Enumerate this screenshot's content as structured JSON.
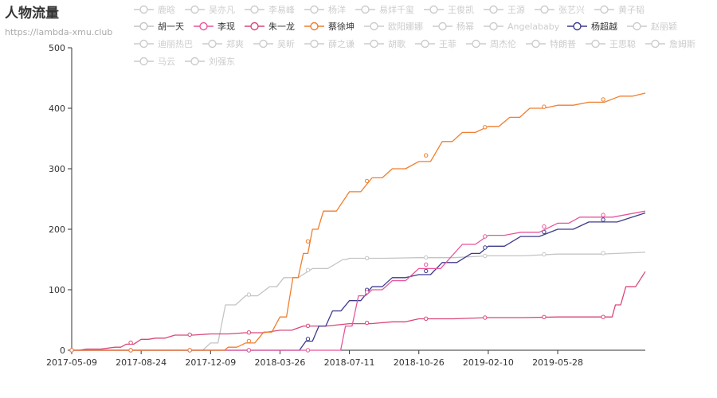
{
  "chart_data": {
    "type": "line",
    "title": "人物流量",
    "subtitle": "https://lambda-xmu.club",
    "y_ticks": [
      0,
      100,
      200,
      300,
      400,
      500
    ],
    "ylim": [
      0,
      500
    ],
    "x_ticks": [
      "2017-05-09",
      "2017-08-24",
      "2017-12-09",
      "2018-03-26",
      "2018-07-11",
      "2018-10-26",
      "2019-02-10",
      "2019-05-28"
    ],
    "xlim": [
      "2017-05-09",
      "2019-10-10"
    ],
    "legend_rows": [
      [
        "鹿晗",
        "吴亦凡",
        "李易峰",
        "杨洋",
        "易烊千玺",
        "王俊凯",
        "王源",
        "张艺兴",
        "黄子韬"
      ],
      [
        "胡一天",
        "李现",
        "朱一龙",
        "蔡徐坤",
        "欧阳娜娜",
        "杨幂",
        "Angelababy",
        "杨超越",
        "赵丽颖"
      ],
      [
        "迪丽热巴",
        "郑爽",
        "吴昕",
        "薛之谦",
        "胡歌",
        "王菲",
        "周杰伦",
        "特朗普",
        "王思聪",
        "詹姆斯"
      ],
      [
        "马云",
        "刘强东"
      ]
    ],
    "series": [
      {
        "name": "胡一天",
        "color": "#c4c4c4",
        "active": true,
        "points": [
          [
            "2017-05-09",
            0
          ],
          [
            "2017-11-15",
            0
          ],
          [
            "2017-12-09",
            12
          ],
          [
            "2018-01-01",
            75
          ],
          [
            "2018-02-01",
            90
          ],
          [
            "2018-03-10",
            105
          ],
          [
            "2018-04-01",
            120
          ],
          [
            "2018-05-15",
            135
          ],
          [
            "2018-07-01",
            150
          ],
          [
            "2018-07-11",
            152
          ],
          [
            "2018-10-26",
            153
          ],
          [
            "2019-02-10",
            156
          ],
          [
            "2019-05-28",
            159
          ],
          [
            "2019-10-10",
            162
          ]
        ]
      },
      {
        "name": "李现",
        "color": "#e8559b",
        "active": true,
        "points": [
          [
            "2017-05-09",
            0
          ],
          [
            "2018-06-20",
            0
          ],
          [
            "2018-07-05",
            40
          ],
          [
            "2018-07-25",
            90
          ],
          [
            "2018-08-15",
            100
          ],
          [
            "2018-09-15",
            115
          ],
          [
            "2018-10-26",
            135
          ],
          [
            "2019-01-01",
            175
          ],
          [
            "2019-02-10",
            190
          ],
          [
            "2019-04-01",
            195
          ],
          [
            "2019-05-28",
            210
          ],
          [
            "2019-07-01",
            220
          ],
          [
            "2019-10-10",
            230
          ]
        ]
      },
      {
        "name": "朱一龙",
        "color": "#d9477a",
        "active": true,
        "points": [
          [
            "2017-05-09",
            0
          ],
          [
            "2017-06-01",
            2
          ],
          [
            "2017-07-15",
            5
          ],
          [
            "2017-08-01",
            10
          ],
          [
            "2017-08-24",
            18
          ],
          [
            "2017-09-15",
            20
          ],
          [
            "2017-10-15",
            25
          ],
          [
            "2017-12-09",
            27
          ],
          [
            "2018-02-01",
            29
          ],
          [
            "2018-03-26",
            33
          ],
          [
            "2018-05-01",
            40
          ],
          [
            "2018-07-11",
            44
          ],
          [
            "2018-09-15",
            47
          ],
          [
            "2018-10-26",
            52
          ],
          [
            "2019-02-10",
            54
          ],
          [
            "2019-05-28",
            55
          ],
          [
            "2019-08-15",
            55
          ],
          [
            "2019-08-25",
            75
          ],
          [
            "2019-09-10",
            105
          ],
          [
            "2019-10-10",
            130
          ]
        ]
      },
      {
        "name": "蔡徐坤",
        "color": "#f07e2e",
        "active": true,
        "points": [
          [
            "2017-05-09",
            0
          ],
          [
            "2017-12-25",
            0
          ],
          [
            "2018-01-05",
            5
          ],
          [
            "2018-02-01",
            12
          ],
          [
            "2018-03-01",
            30
          ],
          [
            "2018-03-26",
            55
          ],
          [
            "2018-04-15",
            120
          ],
          [
            "2018-05-01",
            160
          ],
          [
            "2018-05-15",
            200
          ],
          [
            "2018-06-01",
            230
          ],
          [
            "2018-07-11",
            262
          ],
          [
            "2018-08-15",
            285
          ],
          [
            "2018-09-15",
            300
          ],
          [
            "2018-10-26",
            312
          ],
          [
            "2018-12-01",
            345
          ],
          [
            "2019-01-01",
            360
          ],
          [
            "2019-02-10",
            370
          ],
          [
            "2019-03-15",
            385
          ],
          [
            "2019-04-15",
            400
          ],
          [
            "2019-05-28",
            405
          ],
          [
            "2019-07-15",
            410
          ],
          [
            "2019-09-01",
            420
          ],
          [
            "2019-10-10",
            425
          ]
        ]
      },
      {
        "name": "杨超越",
        "color": "#3d3a8c",
        "active": true,
        "points": [
          [
            "2017-05-09",
            0
          ],
          [
            "2018-04-15",
            0
          ],
          [
            "2018-05-05",
            15
          ],
          [
            "2018-05-25",
            40
          ],
          [
            "2018-06-15",
            65
          ],
          [
            "2018-07-11",
            82
          ],
          [
            "2018-08-15",
            105
          ],
          [
            "2018-09-15",
            120
          ],
          [
            "2018-10-26",
            125
          ],
          [
            "2018-12-01",
            145
          ],
          [
            "2019-01-15",
            160
          ],
          [
            "2019-02-10",
            172
          ],
          [
            "2019-04-01",
            188
          ],
          [
            "2019-05-28",
            200
          ],
          [
            "2019-07-15",
            212
          ],
          [
            "2019-10-10",
            227
          ]
        ]
      }
    ]
  }
}
